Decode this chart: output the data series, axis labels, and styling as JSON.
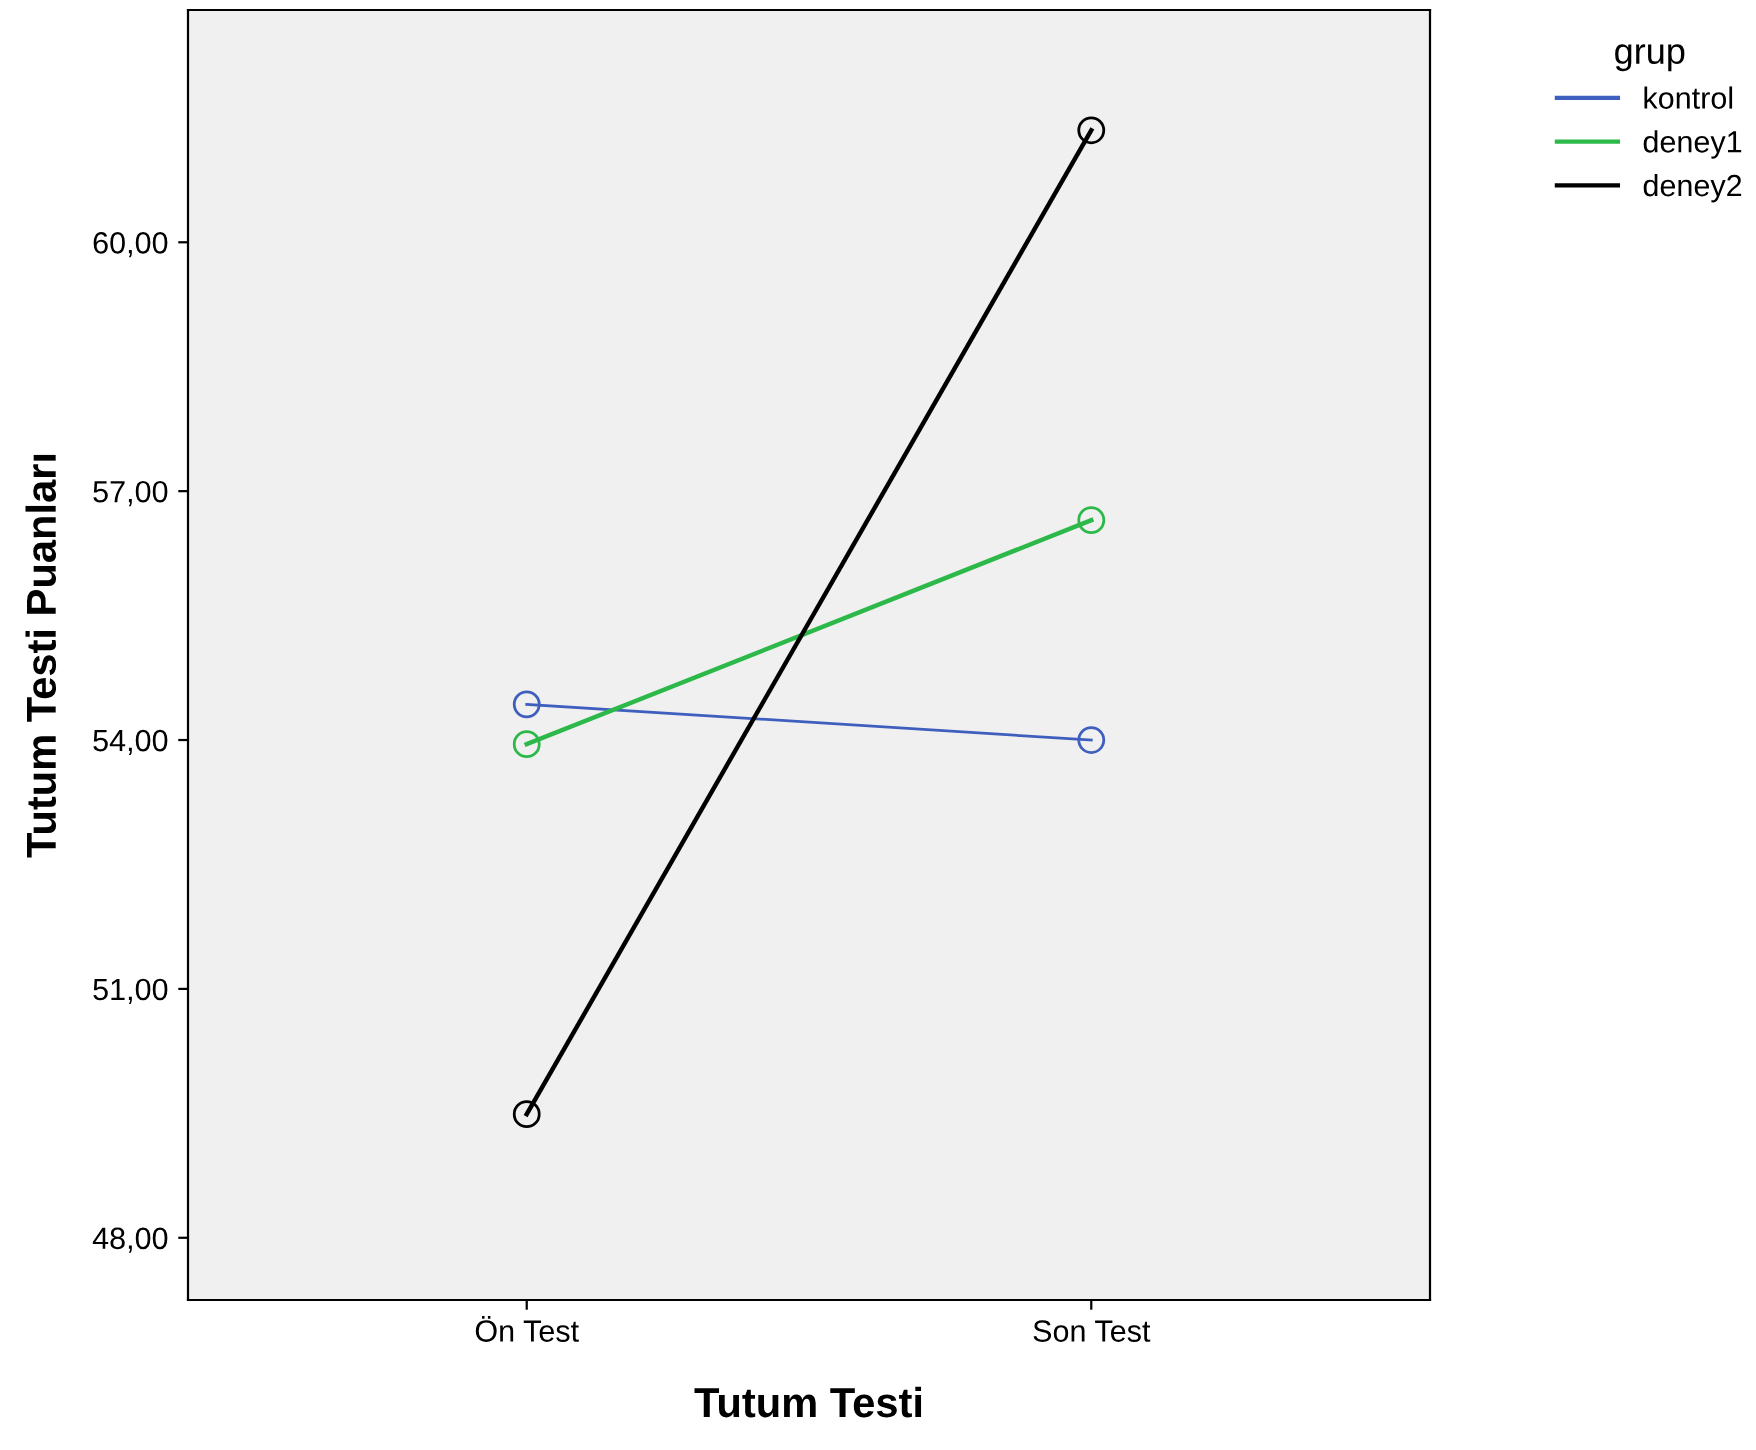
{
  "chart_data": {
    "type": "line",
    "xlabel": "Tutum Testi",
    "ylabel": "Tutum Testi Puanları",
    "legend_title": "grup",
    "legend": "top right",
    "marker": "circle",
    "line_style": "solid",
    "grid": false,
    "categories": [
      "Ön Test",
      "Son Test"
    ],
    "series": [
      {
        "name": "kontrol",
        "color": "#3f5fbf",
        "values": [
          54.43,
          54.0
        ]
      },
      {
        "name": "deney1",
        "color": "#2db84a",
        "values": [
          53.95,
          56.65
        ]
      },
      {
        "name": "deney2",
        "color": "#000000",
        "values": [
          49.49,
          61.35
        ]
      }
    ],
    "ylim": [
      47.25,
      62.8
    ],
    "yticks": [
      {
        "value": 48,
        "label": "48,00"
      },
      {
        "value": 51,
        "label": "51,00"
      },
      {
        "value": 54,
        "label": "54,00"
      },
      {
        "value": 57,
        "label": "57,00"
      },
      {
        "value": 60,
        "label": "60,00"
      }
    ]
  }
}
